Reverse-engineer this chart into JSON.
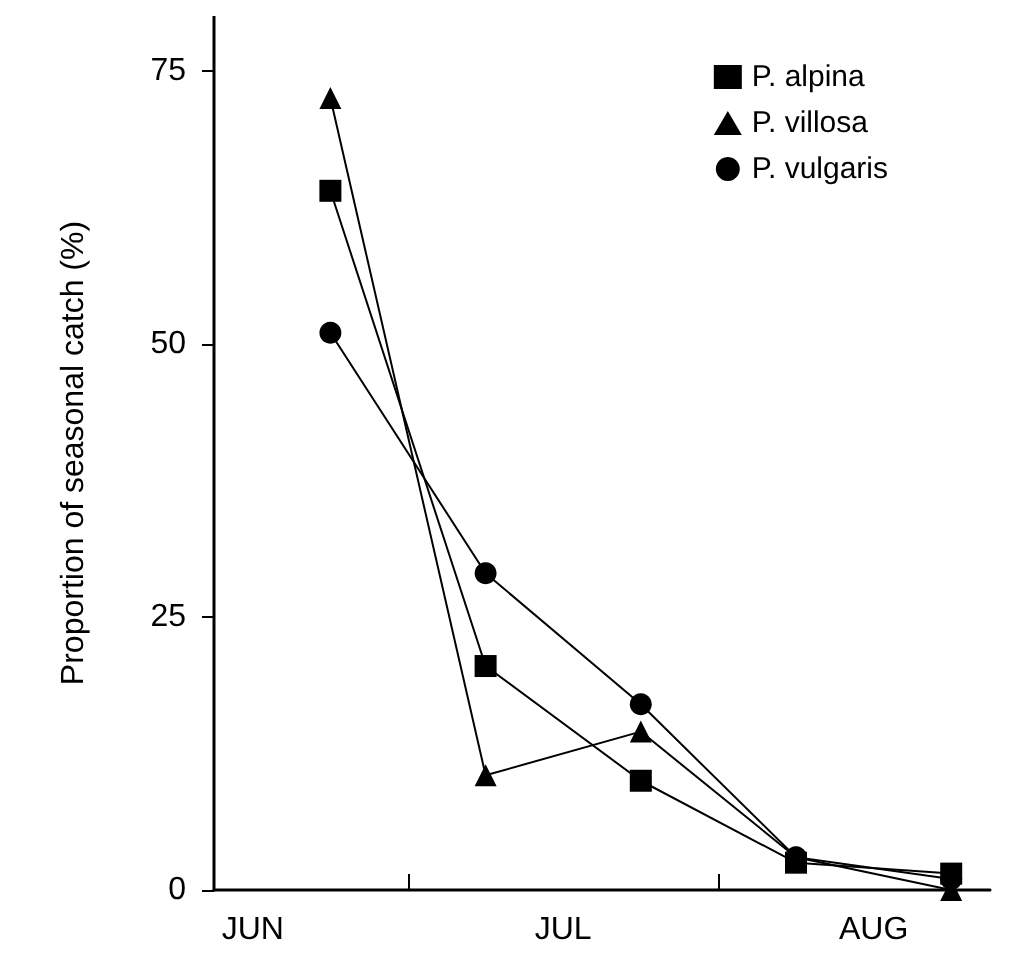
{
  "chart_data": {
    "type": "line",
    "ylabel": "Proportion of seasonal catch (%)",
    "categories": [
      "JUN",
      null,
      null,
      null,
      "JUL",
      null,
      null,
      null,
      "AUG",
      null
    ],
    "ylim": [
      0,
      80
    ],
    "yticks": [
      0,
      25,
      50,
      75
    ],
    "grid": false,
    "legend": "top right",
    "line_style": "solid",
    "series": [
      {
        "name": "P. alpina",
        "color": "#000000",
        "marker": "square",
        "values": [
          null,
          64,
          null,
          20.5,
          null,
          10,
          null,
          2.5,
          null,
          1.5
        ]
      },
      {
        "name": "P. villosa",
        "color": "#000000",
        "marker": "triangle",
        "values": [
          null,
          72.5,
          null,
          10.5,
          null,
          14.5,
          null,
          3,
          null,
          0
        ]
      },
      {
        "name": "P. vulgaris",
        "color": "#000000",
        "marker": "circle",
        "values": [
          null,
          51,
          null,
          29,
          null,
          17,
          null,
          3,
          null,
          1
        ]
      }
    ]
  }
}
